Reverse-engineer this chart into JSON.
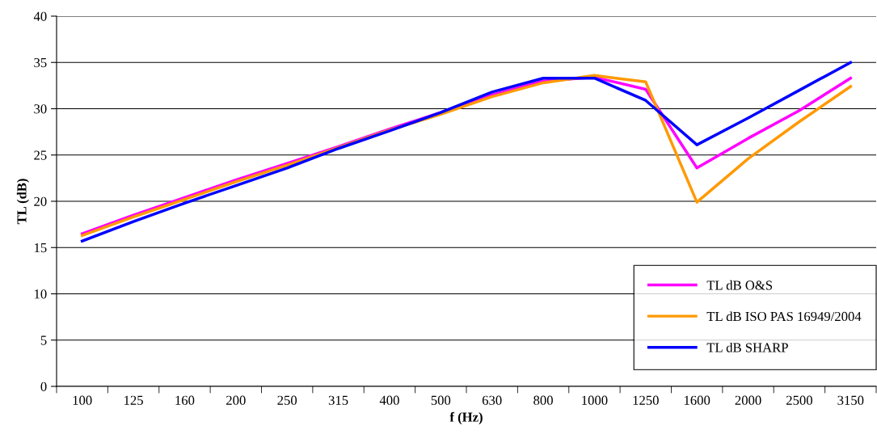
{
  "chart_data": {
    "type": "line",
    "xlabel": "f (Hz)",
    "ylabel": "TL (dB)",
    "categories": [
      "100",
      "125",
      "160",
      "200",
      "250",
      "315",
      "400",
      "500",
      "630",
      "800",
      "1000",
      "1250",
      "1600",
      "2000",
      "2500",
      "3150"
    ],
    "series": [
      {
        "name": "TL dB O&S",
        "color": "#ff00ff",
        "values": [
          16.5,
          18.5,
          20.4,
          22.3,
          24.1,
          25.9,
          27.8,
          29.6,
          31.5,
          33.0,
          33.4,
          32.1,
          23.6,
          26.8,
          29.8,
          33.3
        ]
      },
      {
        "name": "TL dB ISO PAS 16949/2004",
        "color": "#ff9900",
        "values": [
          16.3,
          18.3,
          20.2,
          22.1,
          23.9,
          25.8,
          27.7,
          29.4,
          31.3,
          32.8,
          33.6,
          32.9,
          19.9,
          24.6,
          28.6,
          32.4
        ]
      },
      {
        "name": "TL dB SHARP",
        "color": "#0000ff",
        "values": [
          15.7,
          17.8,
          19.8,
          21.7,
          23.6,
          25.7,
          27.6,
          29.6,
          31.8,
          33.3,
          33.3,
          30.9,
          26.1,
          29.0,
          32.0,
          35.0
        ]
      }
    ],
    "ylim": [
      0,
      40
    ],
    "yticks": [
      0,
      5,
      10,
      15,
      20,
      25,
      30,
      35,
      40
    ],
    "grid": "y",
    "legend": "bottom right",
    "marker": "none",
    "line_style": "solid"
  }
}
